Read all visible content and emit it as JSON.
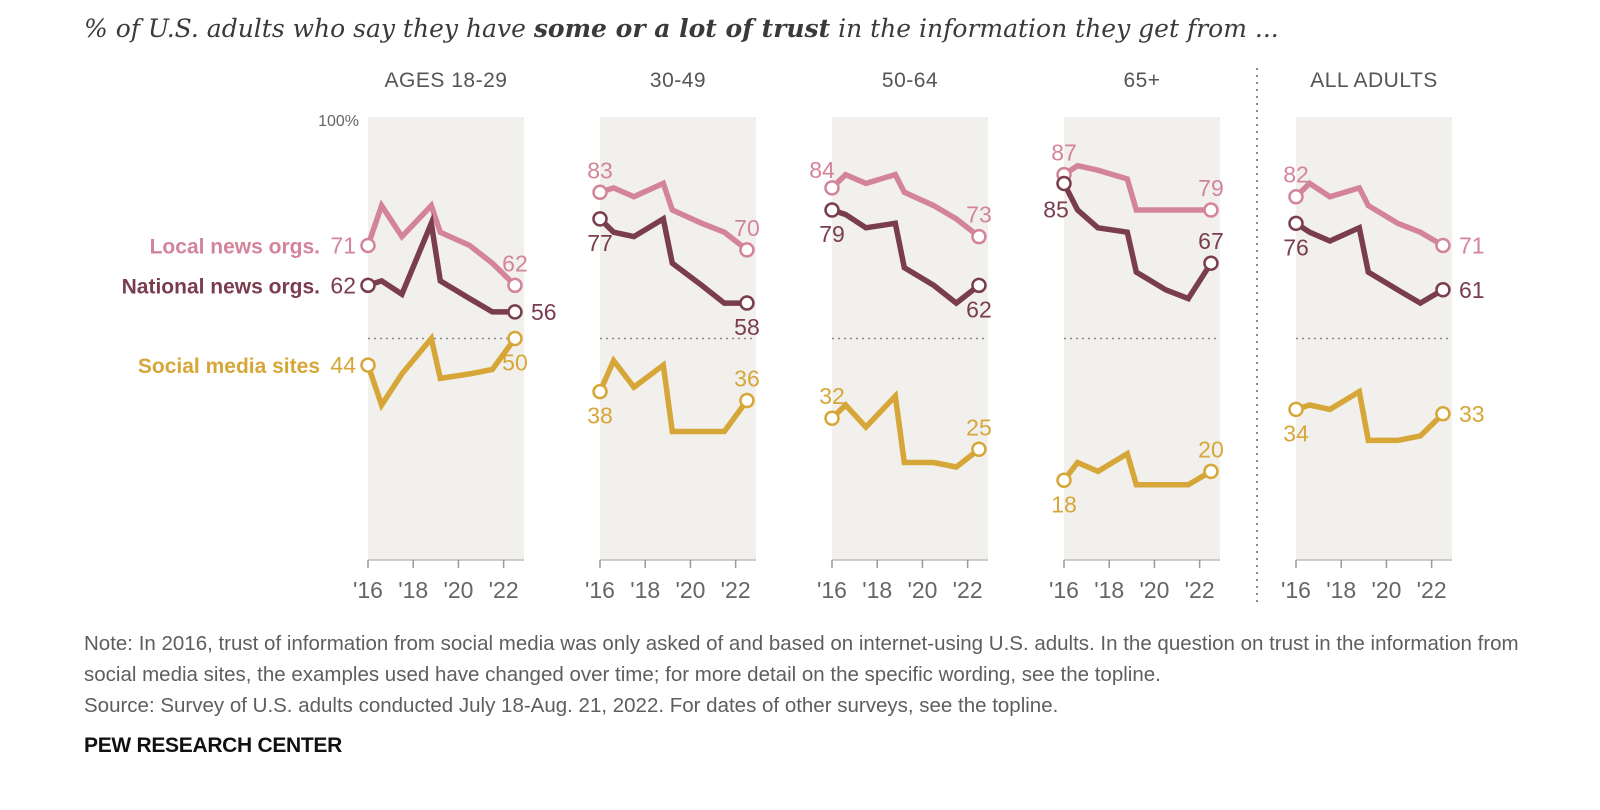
{
  "subtitle": {
    "pre": "% of U.S. adults who say they have ",
    "bold": "some or a lot of trust",
    "post": " in the information they get from ..."
  },
  "colors": {
    "local": "#d4849a",
    "national": "#7a3d4e",
    "social": "#d6a738",
    "panel_bg": "#f2f0ec"
  },
  "chart_data": {
    "type": "line",
    "ylim": [
      0,
      100
    ],
    "y_max_label": "100%",
    "x_tick_labels": [
      "'16",
      "'18",
      "'20",
      "'22"
    ],
    "series_names": [
      "Local news orgs.",
      "National news orgs.",
      "Social media sites"
    ],
    "panels": [
      {
        "title": "AGES 18-29",
        "local": [
          [
            2016.0,
            71
          ],
          [
            2016.6,
            80
          ],
          [
            2017.5,
            73
          ],
          [
            2018.8,
            80
          ],
          [
            2019.2,
            74
          ],
          [
            2020.5,
            71
          ],
          [
            2021.5,
            67
          ],
          [
            2022.5,
            62
          ]
        ],
        "national": [
          [
            2016.0,
            62
          ],
          [
            2016.6,
            63
          ],
          [
            2017.5,
            60
          ],
          [
            2018.8,
            76
          ],
          [
            2019.2,
            63
          ],
          [
            2020.5,
            59
          ],
          [
            2021.5,
            56
          ],
          [
            2022.5,
            56
          ]
        ],
        "social": [
          [
            2016.0,
            44
          ],
          [
            2016.6,
            35
          ],
          [
            2017.5,
            42
          ],
          [
            2018.8,
            50
          ],
          [
            2019.2,
            41
          ],
          [
            2020.5,
            42
          ],
          [
            2021.5,
            43
          ],
          [
            2022.5,
            50
          ]
        ]
      },
      {
        "title": "30-49",
        "local": [
          [
            2016.0,
            83
          ],
          [
            2016.6,
            84
          ],
          [
            2017.5,
            82
          ],
          [
            2018.8,
            85
          ],
          [
            2019.2,
            79
          ],
          [
            2020.5,
            76
          ],
          [
            2021.5,
            74
          ],
          [
            2022.5,
            70
          ]
        ],
        "national": [
          [
            2016.0,
            77
          ],
          [
            2016.6,
            74
          ],
          [
            2017.5,
            73
          ],
          [
            2018.8,
            77
          ],
          [
            2019.2,
            67
          ],
          [
            2020.5,
            62
          ],
          [
            2021.5,
            58
          ],
          [
            2022.5,
            58
          ]
        ],
        "social": [
          [
            2016.0,
            38
          ],
          [
            2016.6,
            45
          ],
          [
            2017.5,
            39
          ],
          [
            2018.8,
            44
          ],
          [
            2019.2,
            29
          ],
          [
            2020.5,
            29
          ],
          [
            2021.5,
            29
          ],
          [
            2022.5,
            36
          ]
        ]
      },
      {
        "title": "50-64",
        "local": [
          [
            2016.0,
            84
          ],
          [
            2016.6,
            87
          ],
          [
            2017.5,
            85
          ],
          [
            2018.8,
            87
          ],
          [
            2019.2,
            83
          ],
          [
            2020.5,
            80
          ],
          [
            2021.5,
            77
          ],
          [
            2022.5,
            73
          ]
        ],
        "national": [
          [
            2016.0,
            79
          ],
          [
            2016.6,
            78
          ],
          [
            2017.5,
            75
          ],
          [
            2018.8,
            76
          ],
          [
            2019.2,
            66
          ],
          [
            2020.5,
            62
          ],
          [
            2021.5,
            58
          ],
          [
            2022.5,
            62
          ]
        ],
        "social": [
          [
            2016.0,
            32
          ],
          [
            2016.6,
            35
          ],
          [
            2017.5,
            30
          ],
          [
            2018.8,
            37
          ],
          [
            2019.2,
            22
          ],
          [
            2020.5,
            22
          ],
          [
            2021.5,
            21
          ],
          [
            2022.5,
            25
          ]
        ]
      },
      {
        "title": "65+",
        "local": [
          [
            2016.0,
            87
          ],
          [
            2016.6,
            89
          ],
          [
            2017.5,
            88
          ],
          [
            2018.8,
            86
          ],
          [
            2019.2,
            79
          ],
          [
            2020.5,
            79
          ],
          [
            2021.5,
            79
          ],
          [
            2022.5,
            79
          ]
        ],
        "national": [
          [
            2016.0,
            85
          ],
          [
            2016.6,
            79
          ],
          [
            2017.5,
            75
          ],
          [
            2018.8,
            74
          ],
          [
            2019.2,
            65
          ],
          [
            2020.5,
            61
          ],
          [
            2021.5,
            59
          ],
          [
            2022.5,
            67
          ]
        ],
        "social": [
          [
            2016.0,
            18
          ],
          [
            2016.6,
            22
          ],
          [
            2017.5,
            20
          ],
          [
            2018.8,
            24
          ],
          [
            2019.2,
            17
          ],
          [
            2020.5,
            17
          ],
          [
            2021.5,
            17
          ],
          [
            2022.5,
            20
          ]
        ]
      },
      {
        "title": "ALL ADULTS",
        "local": [
          [
            2016.0,
            82
          ],
          [
            2016.6,
            85
          ],
          [
            2017.5,
            82
          ],
          [
            2018.8,
            84
          ],
          [
            2019.2,
            80
          ],
          [
            2020.5,
            76
          ],
          [
            2021.5,
            74
          ],
          [
            2022.5,
            71
          ]
        ],
        "national": [
          [
            2016.0,
            76
          ],
          [
            2016.6,
            74
          ],
          [
            2017.5,
            72
          ],
          [
            2018.8,
            75
          ],
          [
            2019.2,
            65
          ],
          [
            2020.5,
            61
          ],
          [
            2021.5,
            58
          ],
          [
            2022.5,
            61
          ]
        ],
        "social": [
          [
            2016.0,
            34
          ],
          [
            2016.6,
            35
          ],
          [
            2017.5,
            34
          ],
          [
            2018.8,
            38
          ],
          [
            2019.2,
            27
          ],
          [
            2020.5,
            27
          ],
          [
            2021.5,
            28
          ],
          [
            2022.5,
            33
          ]
        ]
      }
    ],
    "labels": [
      {
        "text": "71",
        "panel": 0,
        "series": "local",
        "x": 2016.0,
        "y": 71,
        "pos": "left"
      },
      {
        "text": "62",
        "panel": 0,
        "series": "local",
        "x": 2022.5,
        "y": 62,
        "pos": "above"
      },
      {
        "text": "62",
        "panel": 0,
        "series": "national",
        "x": 2016.0,
        "y": 62,
        "pos": "left"
      },
      {
        "text": "56",
        "panel": 0,
        "series": "national",
        "x": 2022.5,
        "y": 56,
        "pos": "right"
      },
      {
        "text": "44",
        "panel": 0,
        "series": "social",
        "x": 2016.0,
        "y": 44,
        "pos": "left"
      },
      {
        "text": "50",
        "panel": 0,
        "series": "social",
        "x": 2022.5,
        "y": 50,
        "pos": "below"
      },
      {
        "text": "83",
        "panel": 1,
        "series": "local",
        "x": 2016.0,
        "y": 83,
        "pos": "above"
      },
      {
        "text": "70",
        "panel": 1,
        "series": "local",
        "x": 2022.5,
        "y": 70,
        "pos": "above"
      },
      {
        "text": "77",
        "panel": 1,
        "series": "national",
        "x": 2016.0,
        "y": 77,
        "pos": "below"
      },
      {
        "text": "58",
        "panel": 1,
        "series": "national",
        "x": 2022.5,
        "y": 58,
        "pos": "below"
      },
      {
        "text": "38",
        "panel": 1,
        "series": "social",
        "x": 2016.0,
        "y": 38,
        "pos": "below"
      },
      {
        "text": "36",
        "panel": 1,
        "series": "social",
        "x": 2022.5,
        "y": 36,
        "pos": "above"
      },
      {
        "text": "84",
        "panel": 2,
        "series": "local",
        "x": 2016.0,
        "y": 84,
        "pos": "aboveleft"
      },
      {
        "text": "73",
        "panel": 2,
        "series": "local",
        "x": 2022.5,
        "y": 73,
        "pos": "above"
      },
      {
        "text": "79",
        "panel": 2,
        "series": "national",
        "x": 2016.0,
        "y": 79,
        "pos": "below"
      },
      {
        "text": "62",
        "panel": 2,
        "series": "national",
        "x": 2022.5,
        "y": 62,
        "pos": "below"
      },
      {
        "text": "32",
        "panel": 2,
        "series": "social",
        "x": 2016.0,
        "y": 32,
        "pos": "above"
      },
      {
        "text": "25",
        "panel": 2,
        "series": "social",
        "x": 2022.5,
        "y": 25,
        "pos": "above"
      },
      {
        "text": "87",
        "panel": 3,
        "series": "local",
        "x": 2016.0,
        "y": 87,
        "pos": "above"
      },
      {
        "text": "79",
        "panel": 3,
        "series": "local",
        "x": 2022.5,
        "y": 79,
        "pos": "above"
      },
      {
        "text": "85",
        "panel": 3,
        "series": "national",
        "x": 2016.0,
        "y": 85,
        "pos": "belowleft"
      },
      {
        "text": "67",
        "panel": 3,
        "series": "national",
        "x": 2022.5,
        "y": 67,
        "pos": "above"
      },
      {
        "text": "18",
        "panel": 3,
        "series": "social",
        "x": 2016.0,
        "y": 18,
        "pos": "below"
      },
      {
        "text": "20",
        "panel": 3,
        "series": "social",
        "x": 2022.5,
        "y": 20,
        "pos": "above"
      },
      {
        "text": "82",
        "panel": 4,
        "series": "local",
        "x": 2016.0,
        "y": 82,
        "pos": "above"
      },
      {
        "text": "71",
        "panel": 4,
        "series": "local",
        "x": 2022.5,
        "y": 71,
        "pos": "right"
      },
      {
        "text": "76",
        "panel": 4,
        "series": "national",
        "x": 2016.0,
        "y": 76,
        "pos": "below"
      },
      {
        "text": "61",
        "panel": 4,
        "series": "national",
        "x": 2022.5,
        "y": 61,
        "pos": "right"
      },
      {
        "text": "34",
        "panel": 4,
        "series": "social",
        "x": 2016.0,
        "y": 34,
        "pos": "below"
      },
      {
        "text": "33",
        "panel": 4,
        "series": "social",
        "x": 2022.5,
        "y": 33,
        "pos": "right"
      }
    ],
    "reference_line": 50,
    "divider_between_panels": [
      3,
      4
    ]
  },
  "note": {
    "line1": "Note: In 2016, trust of information from social media was only asked of and based on internet-using U.S. adults. In the question on trust in the information from social media sites, the examples used have changed over time; for more detail on the specific wording, see the topline.",
    "source": "Source: Survey of U.S. adults conducted July 18-Aug. 21, 2022. For dates of other surveys, see the topline."
  },
  "brand": "PEW RESEARCH CENTER"
}
